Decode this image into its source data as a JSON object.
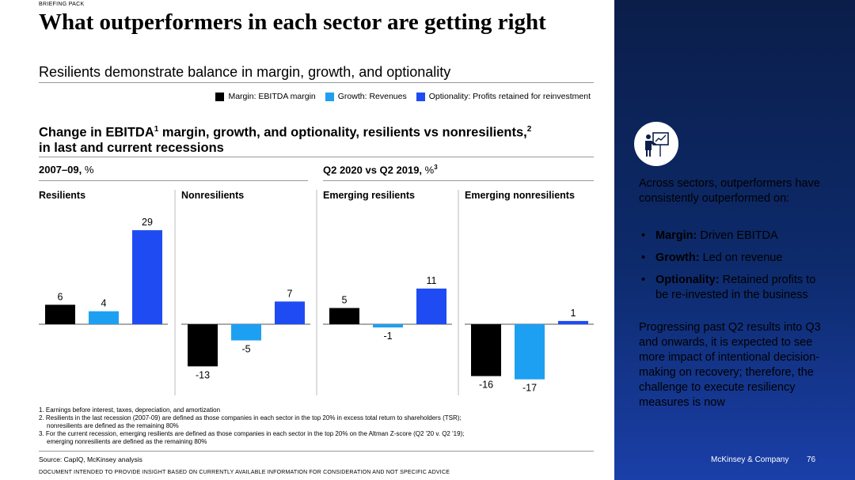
{
  "header": {
    "briefing": "BRIEFING PACK",
    "title": "What outperformers in each sector are getting right",
    "subtitle": "Resilients demonstrate balance in margin, growth, and optionality"
  },
  "legend": [
    {
      "label": "Margin: EBITDA margin",
      "color": "#000000"
    },
    {
      "label": "Growth: Revenues",
      "color": "#1ea0f2"
    },
    {
      "label": "Optionality: Profits retained for reinvestment",
      "color": "#1f4cf2"
    }
  ],
  "chart_title": {
    "part1": "Change in EBITDA",
    "sup1": "1",
    "part2": " margin, growth, and optionality, resilients vs  nonresilients,",
    "sup2": "2",
    "line2": "in last and current recessions"
  },
  "periods": {
    "first": {
      "label": "2007–09,",
      "unit": " %",
      "sup": ""
    },
    "second": {
      "label": "Q2 2020 vs Q2 2019,",
      "unit": " %",
      "sup": "3"
    }
  },
  "chart_data": {
    "type": "bar",
    "title": "Change in EBITDA margin, growth, and optionality, resilients vs nonresilients, in last and current recessions",
    "series": [
      {
        "name": "Margin: EBITDA margin",
        "color": "#000000"
      },
      {
        "name": "Growth: Revenues",
        "color": "#1ea0f2"
      },
      {
        "name": "Optionality: Profits retained for reinvestment",
        "color": "#1f4cf2"
      }
    ],
    "panels": [
      {
        "name": "Resilients",
        "period": "2007–09",
        "values": [
          6,
          4,
          29
        ]
      },
      {
        "name": "Nonresilients",
        "period": "2007–09",
        "values": [
          -13,
          -5,
          7
        ]
      },
      {
        "name": "Emerging resilients",
        "period": "Q2 2020 vs Q2 2019",
        "values": [
          5,
          -1,
          11
        ]
      },
      {
        "name": "Emerging nonresilients",
        "period": "Q2 2020 vs Q2 2019",
        "values": [
          -16,
          -17,
          1
        ]
      }
    ],
    "unit": "%",
    "ylim": [
      -17,
      29
    ]
  },
  "footnotes": [
    "1. Earnings before interest, taxes, depreciation, and amortization",
    "2. Resilients in the last recession (2007-09) are defined as those companies in each sector in the top 20% in excess total return to shareholders (TSR);",
    "nonresilients are defined as the remaining 80%",
    "3. For the current recession, emerging resilients are defined as those companies in each sector in the top 20% on the Altman Z-score (Q2 '20 v. Q2 '19);",
    "emerging nonresilients are defined as the remaining 80%"
  ],
  "source": "Source: CapIQ, McKinsey analysis",
  "disclaimer": "DOCUMENT INTENDED TO PROVIDE INSIGHT BASED ON CURRENTLY AVAILABLE INFORMATION FOR CONSIDERATION AND NOT SPECIFIC ADVICE",
  "sidebar": {
    "icon": "presenter-icon",
    "intro": "Across sectors, outperformers have consistently outperformed on:",
    "bullets": [
      {
        "bold": "Margin:",
        "text": " Driven EBITDA"
      },
      {
        "bold": "Growth:",
        "text": " Led on revenue"
      },
      {
        "bold": "Optionality:",
        "text": " Retained profits to be re-invested in the business"
      }
    ],
    "closing": "Progressing past Q2 results into Q3 and onwards, it is expected to see more impact of intentional decision-making on recovery; therefore, the challenge to execute resiliency measures is now"
  },
  "footer": {
    "brand": "McKinsey & Company",
    "page": "76"
  }
}
